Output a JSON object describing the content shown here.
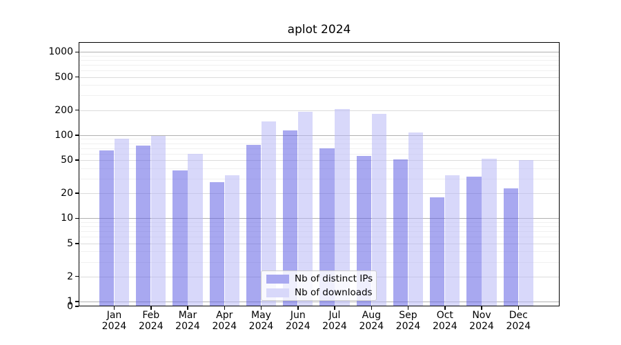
{
  "title": "aplot 2024",
  "chart_data": {
    "type": "bar",
    "title": "aplot 2024",
    "xlabel": "",
    "ylabel": "",
    "yscale": "symlog",
    "categories": [
      "Jan",
      "Feb",
      "Mar",
      "Apr",
      "May",
      "Jun",
      "Jul",
      "Aug",
      "Sep",
      "Oct",
      "Nov",
      "Dec"
    ],
    "year_suffix": "2024",
    "series": [
      {
        "name": "Nb of distinct IPs",
        "color": "#a8a8f0",
        "values": [
          65,
          75,
          38,
          27,
          76,
          115,
          70,
          56,
          51,
          18,
          32,
          23
        ]
      },
      {
        "name": "Nb of downloads",
        "color": "#d8d8fa",
        "values": [
          90,
          97,
          60,
          33,
          145,
          190,
          205,
          180,
          108,
          33,
          52,
          50
        ]
      }
    ],
    "yticks": [
      0,
      1,
      2,
      5,
      10,
      20,
      50,
      100,
      200,
      500,
      1000
    ],
    "yminor_gridlines": [
      3,
      4,
      6,
      7,
      8,
      9,
      30,
      40,
      60,
      70,
      80,
      90,
      300,
      400,
      600,
      700,
      800,
      900
    ],
    "ylim": [
      0,
      1300
    ],
    "grid": true,
    "legend_position": "lower center"
  },
  "legend": {
    "items": [
      {
        "label": "Nb of distinct IPs",
        "color": "#a8a8f0"
      },
      {
        "label": "Nb of downloads",
        "color": "#d8d8fa"
      }
    ]
  },
  "colors": {
    "bar_ips_fill": "rgba(97,97,228,0.55)",
    "bar_downloads_fill": "rgba(184,184,246,0.55)",
    "grid_decade": "#b0b0b0",
    "grid_major": "#dbdbdb",
    "grid_minor": "#f0f0f0",
    "spine": "#000000"
  }
}
